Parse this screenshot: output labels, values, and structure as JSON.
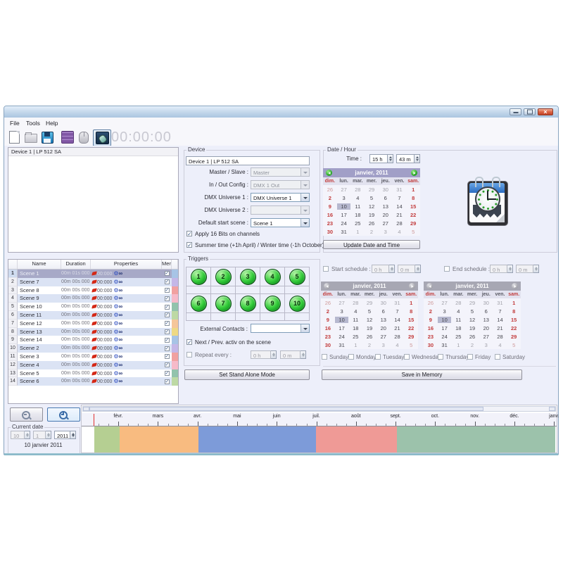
{
  "window": {
    "buttons": [
      "minimize",
      "maximize",
      "close"
    ]
  },
  "menu": [
    "File",
    "Tools",
    "Help"
  ],
  "toolbar": {
    "icons": [
      "new-file",
      "open-folder",
      "save",
      "patch-grid",
      "mouse",
      "stand-alone-mode"
    ],
    "clock": "00:00:00"
  },
  "device_list": {
    "item": "Device 1 | LP 512 SA"
  },
  "device": {
    "label": "Device",
    "name_value": "Device 1 | LP 512 SA",
    "fields": [
      {
        "label": "Master / Slave :",
        "value": "Master",
        "disabled": true
      },
      {
        "label": "In / Out Config :",
        "value": "DMX 1 Out",
        "disabled": true
      },
      {
        "label": "DMX Universe 1 :",
        "value": "DMX Universe 1",
        "disabled": false
      },
      {
        "label": "DMX Universe 2 :",
        "value": "",
        "disabled": true
      },
      {
        "label": "Default start scene :",
        "value": "Scene 1",
        "disabled": false
      }
    ],
    "checkboxes": [
      {
        "label": "Apply 16 Bits on channels",
        "checked": true
      },
      {
        "label": "Summer time (+1h April) / Winter time (-1h October)",
        "checked": true
      }
    ]
  },
  "date_hour": {
    "label": "Date / Hour",
    "time_label": "Time :",
    "hour": "15 h",
    "minute": "43 m",
    "update_button": "Update Date and Time",
    "clock_icon": "calendar-clock-icon"
  },
  "calendar": {
    "month_year": "janvier,  2011",
    "day_names": [
      "dim.",
      "lun.",
      "mar.",
      "mer.",
      "jeu.",
      "ven.",
      "sam."
    ],
    "weeks": [
      [
        26,
        27,
        28,
        29,
        30,
        31,
        1
      ],
      [
        2,
        3,
        4,
        5,
        6,
        7,
        8
      ],
      [
        9,
        10,
        11,
        12,
        13,
        14,
        15
      ],
      [
        16,
        17,
        18,
        19,
        20,
        21,
        22
      ],
      [
        23,
        24,
        25,
        26,
        27,
        28,
        29
      ],
      [
        30,
        31,
        1,
        2,
        3,
        4,
        5
      ]
    ],
    "selected_day": 10
  },
  "triggers": {
    "label": "Triggers",
    "buttons": [
      "1",
      "2",
      "3",
      "4",
      "5",
      "6",
      "7",
      "8",
      "9",
      "10"
    ],
    "external_label": "External Contacts :",
    "external_value": "",
    "next_prev_label": "Next / Prev. activ on the scene",
    "next_prev_checked": true,
    "repeat_label": "Repeat every :",
    "repeat_checked": false,
    "repeat_hour": "0 h",
    "repeat_minute": "0 m",
    "set_button": "Set Stand Alone Mode"
  },
  "schedule": {
    "start_label": "Start schedule :",
    "start_hour": "0 h",
    "start_minute": "0 m",
    "end_label": "End schedule :",
    "end_hour": "0 h",
    "end_minute": "0 m",
    "days": [
      "Sunday",
      "Monday",
      "Tuesday",
      "Wednesday",
      "Thursday",
      "Friday",
      "Saturday"
    ],
    "save_button": "Save in Memory"
  },
  "scene_table": {
    "headers": [
      "",
      "Name",
      "Duration",
      "Properties",
      "Mem."
    ],
    "rows": [
      {
        "n": "1",
        "name": "Scene 1",
        "duration": "00m 01s 000",
        "time": "00:000",
        "loop": "∞",
        "mem": true,
        "color": "#a7c4e6",
        "selected": true
      },
      {
        "n": "2",
        "name": "Scene 7",
        "duration": "00m 00s 000",
        "time": "00:000",
        "loop": "∞",
        "mem": true,
        "color": "#c4b7e7",
        "selected": false
      },
      {
        "n": "3",
        "name": "Scene 8",
        "duration": "00m 00s 000",
        "time": "00:000",
        "loop": "∞",
        "mem": true,
        "color": "#f1a1a0",
        "selected": false
      },
      {
        "n": "4",
        "name": "Scene 9",
        "duration": "00m 00s 000",
        "time": "00:000",
        "loop": "∞",
        "mem": true,
        "color": "#f6bac9",
        "selected": false
      },
      {
        "n": "5",
        "name": "Scene 10",
        "duration": "00m 00s 000",
        "time": "00:000",
        "loop": "∞",
        "mem": true,
        "color": "#92c3ac",
        "selected": false
      },
      {
        "n": "6",
        "name": "Scene 11",
        "duration": "00m 00s 000",
        "time": "00:000",
        "loop": "∞",
        "mem": true,
        "color": "#bdd9a4",
        "selected": false
      },
      {
        "n": "7",
        "name": "Scene 12",
        "duration": "00m 00s 000",
        "time": "00:000",
        "loop": "∞",
        "mem": true,
        "color": "#f5c69a",
        "selected": false
      },
      {
        "n": "8",
        "name": "Scene 13",
        "duration": "00m 00s 000",
        "time": "00:000",
        "loop": "∞",
        "mem": true,
        "color": "#eed984",
        "selected": false
      },
      {
        "n": "9",
        "name": "Scene 14",
        "duration": "00m 00s 000",
        "time": "00:000",
        "loop": "∞",
        "mem": true,
        "color": "#a7c4e6",
        "selected": false
      },
      {
        "n": "10",
        "name": "Scene 2",
        "duration": "00m 00s 000",
        "time": "00:000",
        "loop": "∞",
        "mem": true,
        "color": "#c4b7e7",
        "selected": false
      },
      {
        "n": "11",
        "name": "Scene 3",
        "duration": "00m 00s 000",
        "time": "00:000",
        "loop": "∞",
        "mem": true,
        "color": "#f1a1a0",
        "selected": false
      },
      {
        "n": "12",
        "name": "Scene 4",
        "duration": "00m 00s 000",
        "time": "00:000",
        "loop": "∞",
        "mem": true,
        "color": "#f6bac9",
        "selected": false
      },
      {
        "n": "13",
        "name": "Scene 5",
        "duration": "00m 00s 000",
        "time": "00:000",
        "loop": "∞",
        "mem": true,
        "color": "#92c3ac",
        "selected": false
      },
      {
        "n": "14",
        "name": "Scene 6",
        "duration": "00m 00s 000",
        "time": "00:000",
        "loop": "∞",
        "mem": true,
        "color": "#bdd9a4",
        "selected": false
      }
    ]
  },
  "zoom_controls": {
    "icons": [
      "zoom-out-icon",
      "zoom-in-icon"
    ]
  },
  "current_date": {
    "label": "Current date",
    "day": "10",
    "month": "1",
    "year": "2011",
    "display": "10 janvier 2011"
  },
  "timeline": {
    "months": [
      "févr.",
      "mars",
      "avr.",
      "mai",
      "juin",
      "juil.",
      "août",
      "sept.",
      "oct.",
      "nov.",
      "déc.",
      "janv."
    ],
    "marker_color": "#e03030",
    "bands": [
      {
        "color": "#b5cf92",
        "from": 18,
        "to": 54
      },
      {
        "color": "#f8bb80",
        "from": 54,
        "to": 166
      },
      {
        "color": "#7d9bd9",
        "from": 166,
        "to": 333
      },
      {
        "color": "#ef9a96",
        "from": 333,
        "to": 448
      },
      {
        "color": "#9cc2ab",
        "from": 448,
        "to": 673
      }
    ]
  }
}
